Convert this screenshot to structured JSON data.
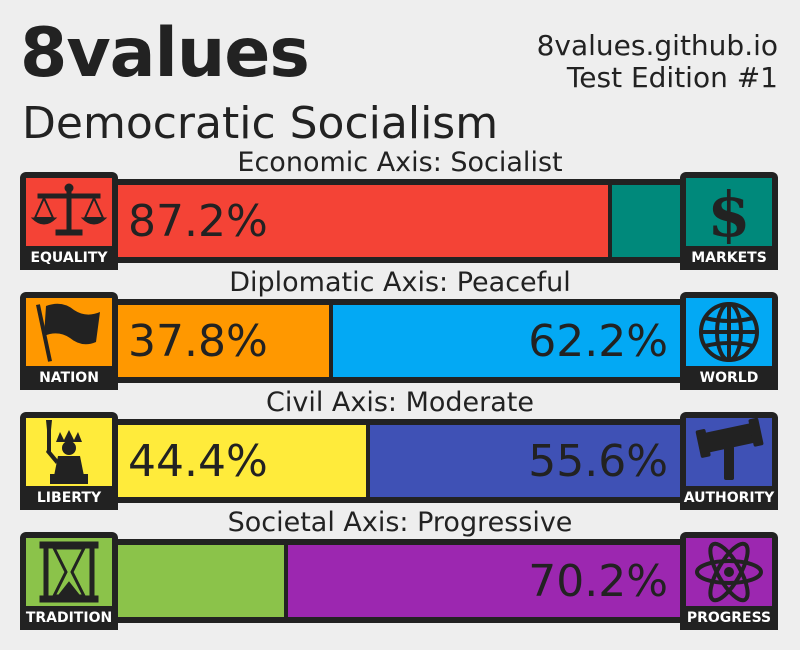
{
  "header": {
    "brand": "8values",
    "ideology": "Democratic Socialism",
    "site": "8values.github.io",
    "edition": "Test Edition #1"
  },
  "axes": [
    {
      "title": "Economic Axis: Socialist",
      "left_label": "EQUALITY",
      "right_label": "MARKETS",
      "left_icon": "scales-icon",
      "right_icon": "dollar-icon",
      "left_color": "#f44336",
      "right_color": "#00897b",
      "left_fraction": 0.872,
      "left_text": "87.2%",
      "right_text": ""
    },
    {
      "title": "Diplomatic Axis: Peaceful",
      "left_label": "NATION",
      "right_label": "WORLD",
      "left_icon": "flag-icon",
      "right_icon": "globe-icon",
      "left_color": "#ff9800",
      "right_color": "#03a9f4",
      "left_fraction": 0.378,
      "left_text": "37.8%",
      "right_text": "62.2%"
    },
    {
      "title": "Civil Axis: Moderate",
      "left_label": "LIBERTY",
      "right_label": "AUTHORITY",
      "left_icon": "statue-of-liberty-icon",
      "right_icon": "gavel-icon",
      "left_color": "#ffeb3b",
      "right_color": "#3f51b5",
      "left_fraction": 0.444,
      "left_text": "44.4%",
      "right_text": "55.6%"
    },
    {
      "title": "Societal Axis: Progressive",
      "left_label": "TRADITION",
      "right_label": "PROGRESS",
      "left_icon": "hourglass-icon",
      "right_icon": "atom-icon",
      "left_color": "#8bc34a",
      "right_color": "#9c27b0",
      "left_fraction": 0.298,
      "left_text": "",
      "right_text": "70.2%"
    }
  ]
}
